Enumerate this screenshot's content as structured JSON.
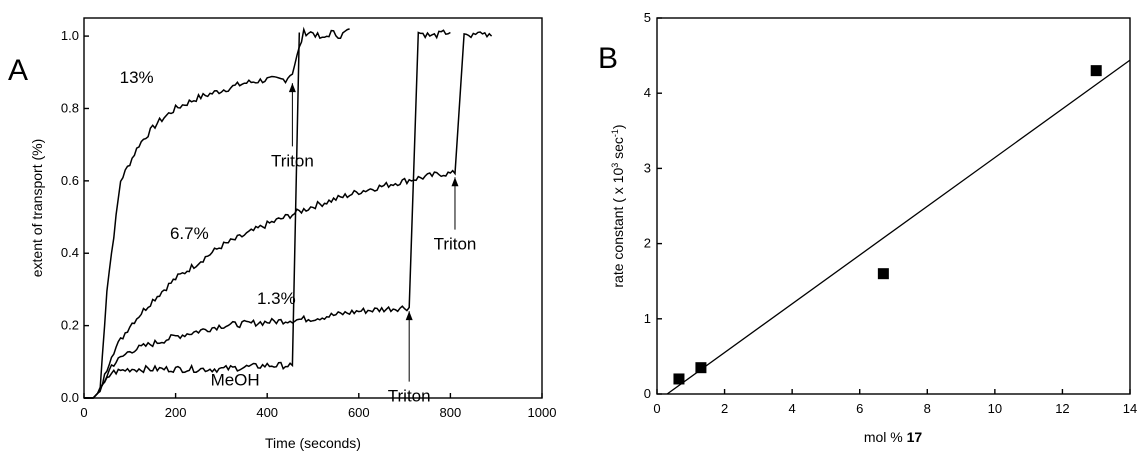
{
  "chart_data": [
    {
      "type": "line",
      "panel_label": "A",
      "xlabel": "Time (seconds)",
      "ylabel": "extent of transport (%)",
      "xlim": [
        0,
        1000
      ],
      "ylim": [
        0,
        1.05
      ],
      "xticks": [
        "0",
        "200",
        "400",
        "600",
        "800",
        "1000"
      ],
      "yticks": [
        "0.0",
        "0.2",
        "0.4",
        "0.6",
        "0.8",
        "1.0"
      ],
      "series": [
        {
          "name": "13%",
          "x": [
            0,
            20,
            35,
            50,
            80,
            120,
            160,
            200,
            250,
            300,
            350,
            400,
            440,
            455,
            480,
            500,
            520,
            540,
            560,
            580
          ],
          "values": [
            0.0,
            0.0,
            0.02,
            0.3,
            0.6,
            0.7,
            0.76,
            0.8,
            0.83,
            0.85,
            0.87,
            0.88,
            0.88,
            0.9,
            1.01,
            1.01,
            0.99,
            1.01,
            1.0,
            1.02
          ]
        },
        {
          "name": "6.7%",
          "x": [
            0,
            20,
            35,
            60,
            100,
            150,
            200,
            300,
            400,
            500,
            600,
            700,
            780,
            810,
            830,
            850,
            870,
            890
          ],
          "values": [
            0.0,
            0.0,
            0.02,
            0.12,
            0.2,
            0.27,
            0.33,
            0.42,
            0.48,
            0.53,
            0.57,
            0.6,
            0.62,
            0.62,
            1.01,
            1.0,
            1.01,
            1.0
          ]
        },
        {
          "name": "1.3%",
          "x": [
            0,
            20,
            35,
            60,
            100,
            200,
            300,
            400,
            500,
            600,
            700,
            710,
            730,
            760,
            790,
            800
          ],
          "values": [
            0.0,
            0.0,
            0.02,
            0.09,
            0.13,
            0.17,
            0.2,
            0.21,
            0.22,
            0.24,
            0.25,
            0.25,
            1.01,
            1.0,
            1.01,
            1.01
          ]
        },
        {
          "name": "MeOH",
          "x": [
            0,
            20,
            35,
            60,
            100,
            200,
            300,
            400,
            455,
            470
          ],
          "values": [
            0.0,
            0.0,
            0.02,
            0.07,
            0.08,
            0.08,
            0.08,
            0.09,
            0.09,
            1.01
          ]
        }
      ],
      "annotations": [
        {
          "text": "13%",
          "x": 115,
          "y": 0.87
        },
        {
          "text": "6.7%",
          "x": 230,
          "y": 0.44
        },
        {
          "text": "1.3%",
          "x": 420,
          "y": 0.26
        },
        {
          "text": "MeOH",
          "x": 330,
          "y": 0.035
        },
        {
          "text": "Triton",
          "x": 455,
          "y": 0.64,
          "arrow_to": [
            455,
            0.87
          ]
        },
        {
          "text": "Triton",
          "x": 810,
          "y": 0.41,
          "arrow_to": [
            810,
            0.61
          ]
        },
        {
          "text": "Triton",
          "x": 710,
          "y": -0.01,
          "arrow_to": [
            710,
            0.24
          ]
        }
      ]
    },
    {
      "type": "scatter",
      "panel_label": "B",
      "xlabel_prefix": "mol % ",
      "xlabel_bold": "17",
      "ylabel": "rate constant ( x 10",
      "ylabel_exp": "3",
      "ylabel_unit": " sec",
      "ylabel_unit_exp": "-1",
      "ylabel_close": ")",
      "xlim": [
        0,
        14
      ],
      "ylim": [
        0,
        5
      ],
      "xticks": [
        "0",
        "2",
        "4",
        "6",
        "8",
        "10",
        "12",
        "14"
      ],
      "yticks": [
        "0",
        "1",
        "2",
        "3",
        "4",
        "5"
      ],
      "points": [
        {
          "x": 0.65,
          "y": 0.2
        },
        {
          "x": 1.3,
          "y": 0.35
        },
        {
          "x": 6.7,
          "y": 1.6
        },
        {
          "x": 13.0,
          "y": 4.3
        }
      ],
      "fit_line": {
        "x": [
          0.3,
          14
        ],
        "y": [
          0.0,
          4.44
        ]
      }
    }
  ]
}
